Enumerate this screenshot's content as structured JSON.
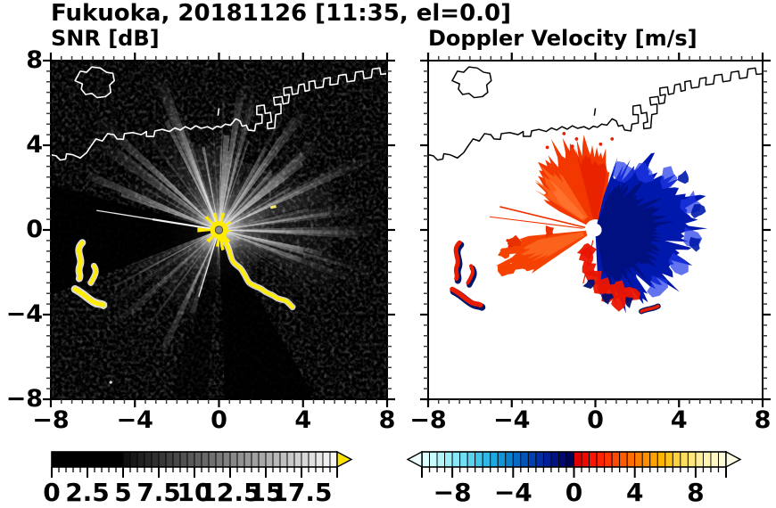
{
  "figure": {
    "title": "Fukuoka, 20181126 [11:35, el=0.0]"
  },
  "panels": [
    {
      "id": "snr",
      "title": "SNR [dB]"
    },
    {
      "id": "doppler",
      "title": "Doppler Velocity [m/s]"
    }
  ],
  "axes": {
    "xlim": [
      -8,
      8
    ],
    "ylim": [
      -8,
      8
    ],
    "x_tick_values": [
      -8,
      -4,
      0,
      4,
      8
    ],
    "x_tick_labels": [
      "−8",
      "−4",
      "0",
      "4",
      "8"
    ],
    "y_tick_values": [
      8,
      4,
      0,
      -4,
      -8
    ],
    "y_tick_labels": [
      "8",
      "4",
      "0",
      "−4",
      "−8"
    ],
    "minor_tick_step": 0.5
  },
  "colorbars": {
    "snr": {
      "range": [
        0,
        20
      ],
      "segment_step": 0.5,
      "tick_values": [
        0,
        2.5,
        5,
        7.5,
        10,
        12.5,
        15,
        17.5
      ],
      "tick_labels": [
        "0",
        "2.5",
        "5",
        "7.5",
        "10",
        "12.5",
        "15",
        "17.5"
      ],
      "major_mark_values": [
        0,
        2.5,
        5,
        7.5,
        10,
        12.5,
        15,
        17.5,
        20
      ],
      "over_arrow_color": "#ffe400",
      "colors": [
        "#000000",
        "#000000",
        "#000000",
        "#000000",
        "#000000",
        "#000000",
        "#000000",
        "#000000",
        "#000000",
        "#000000",
        "#101010",
        "#181818",
        "#202020",
        "#282828",
        "#303030",
        "#383838",
        "#404040",
        "#484848",
        "#505050",
        "#585858",
        "#606060",
        "#686868",
        "#707070",
        "#787878",
        "#808080",
        "#888888",
        "#909090",
        "#989898",
        "#a0a0a0",
        "#a8a8a8",
        "#b0b0b0",
        "#b8b8b8",
        "#c0c0c0",
        "#c8c8c8",
        "#d0d0d0",
        "#d8d8d8",
        "#e0e0e0",
        "#e8e8e8",
        "#f0f0f0",
        "#f8f8f8"
      ]
    },
    "doppler": {
      "range": [
        -10,
        10
      ],
      "segment_step": 0.5,
      "tick_values": [
        -8,
        -4,
        0,
        4,
        8
      ],
      "tick_labels": [
        "−8",
        "−4",
        "0",
        "4",
        "8"
      ],
      "major_mark_values": [
        -10,
        -8,
        -4,
        0,
        4,
        8,
        10
      ],
      "under_arrow_color": "#eeffff",
      "over_arrow_color": "#ffffe8",
      "colors": [
        "#dcffff",
        "#c8fcfe",
        "#b2f6fc",
        "#9cf0fa",
        "#86e8f8",
        "#70def4",
        "#5ad2f0",
        "#44c6ec",
        "#30b8e6",
        "#1ea8e0",
        "#1294d8",
        "#0880ce",
        "#046ac4",
        "#0154ba",
        "#0140b0",
        "#012ea4",
        "#001f96",
        "#001384",
        "#000a6e",
        "#000450",
        "#e00000",
        "#f00800",
        "#fc1400",
        "#ff2400",
        "#ff3600",
        "#ff4800",
        "#ff5a00",
        "#ff6c00",
        "#ff7e00",
        "#ff9000",
        "#ffa200",
        "#ffb400",
        "#ffc41c",
        "#ffd23c",
        "#ffde5c",
        "#ffe87c",
        "#ffee98",
        "#fff4b0",
        "#fff8c6",
        "#fffcda"
      ]
    }
  },
  "chart_data": [
    {
      "type": "heatmap",
      "title": "SNR [dB]",
      "suptitle": "Fukuoka, 20181126 [11:35, el=0.0]",
      "xlim": [
        -8,
        8
      ],
      "ylim": [
        -8,
        8
      ],
      "x_ticks": [
        -8,
        -4,
        0,
        4,
        8
      ],
      "y_ticks": [
        -8,
        -4,
        0,
        4,
        8
      ],
      "radar_center": [
        0,
        0
      ],
      "colorbar": {
        "range": [
          0,
          20
        ],
        "ticks": [
          0,
          2.5,
          5,
          7.5,
          10,
          12.5,
          15,
          17.5
        ],
        "colormap": "grayscale black-to-white, yellow overflow arrow"
      },
      "features": "black background with speckle noise; bright white radial beams from radar at origin; dark wedges toward west and south; saturated yellow clutter at center, along a chain from (0,-0.4) to (3.5,-3.6), and arc-shaped echoes near (-6.5,-1.5) and (-6,-3.3); white coastline with island at top-left and harbor piers at top-right"
    },
    {
      "type": "heatmap",
      "title": "Doppler Velocity [m/s]",
      "xlim": [
        -8,
        8
      ],
      "ylim": [
        -8,
        8
      ],
      "x_ticks": [
        -8,
        -4,
        0,
        4,
        8
      ],
      "y_ticks": [
        -8,
        -4,
        0,
        4,
        8
      ],
      "radar_center": [
        0,
        0
      ],
      "colorbar": {
        "range": [
          -10,
          10
        ],
        "ticks": [
          -8,
          -4,
          0,
          4,
          8
        ],
        "colormap": "diverging: pale cyan to navy (negative), red to cream (positive)"
      },
      "features": "white background with black coastline; orange-red fan (positive velocity) northwest of radar and wedge southwest; deep navy-blue lobe (negative velocity) east to south-east out to ~4.5 km; red fringe on southern edge of blue lobe; small red/navy arc echoes near (-6.5,-1.5) and (-6,-3.3); white dot at radar position"
    }
  ]
}
